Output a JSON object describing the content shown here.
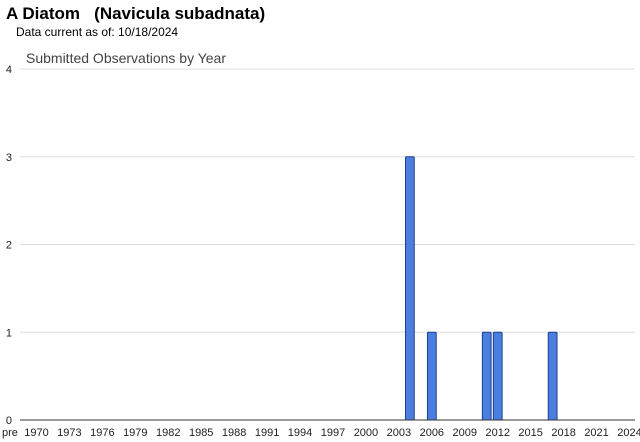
{
  "header": {
    "species_title": "A Diatom   (Navicula subadnata)",
    "data_current": "Data current as of: 10/18/2024"
  },
  "colors": {
    "bar_fill": "#4a7fe0",
    "bar_stroke": "#1f3f8f",
    "grid": "#dddddd",
    "axis": "#333333"
  },
  "chart_data": {
    "type": "bar",
    "title": "Submitted Observations by Year",
    "xlabel": "",
    "ylabel": "",
    "ylim": [
      0,
      4
    ],
    "yticks": [
      0,
      1,
      2,
      3,
      4
    ],
    "grid": true,
    "legend": "none",
    "categories": [
      "pre",
      "1970",
      "1971",
      "1972",
      "1973",
      "1974",
      "1975",
      "1976",
      "1977",
      "1978",
      "1979",
      "1980",
      "1981",
      "1982",
      "1983",
      "1984",
      "1985",
      "1986",
      "1987",
      "1988",
      "1989",
      "1990",
      "1991",
      "1992",
      "1993",
      "1994",
      "1995",
      "1996",
      "1997",
      "1998",
      "1999",
      "2000",
      "2001",
      "2002",
      "2003",
      "2004",
      "2005",
      "2006",
      "2007",
      "2008",
      "2009",
      "2010",
      "2011",
      "2012",
      "2013",
      "2014",
      "2015",
      "2016",
      "2017",
      "2018",
      "2019",
      "2020",
      "2021",
      "2022",
      "2023",
      "2024"
    ],
    "tick_labels": [
      "pre",
      "1970",
      "1973",
      "1976",
      "1979",
      "1982",
      "1985",
      "1988",
      "1991",
      "1994",
      "1997",
      "2000",
      "2003",
      "2006",
      "2009",
      "2012",
      "2015",
      "2018",
      "2021",
      "2024"
    ],
    "values": [
      0,
      0,
      0,
      0,
      0,
      0,
      0,
      0,
      0,
      0,
      0,
      0,
      0,
      0,
      0,
      0,
      0,
      0,
      0,
      0,
      0,
      0,
      0,
      0,
      0,
      0,
      0,
      0,
      0,
      0,
      0,
      0,
      0,
      0,
      0,
      3,
      0,
      1,
      0,
      0,
      0,
      0,
      1,
      1,
      0,
      0,
      0,
      0,
      1,
      0,
      0,
      0,
      0,
      0,
      0,
      0
    ]
  }
}
